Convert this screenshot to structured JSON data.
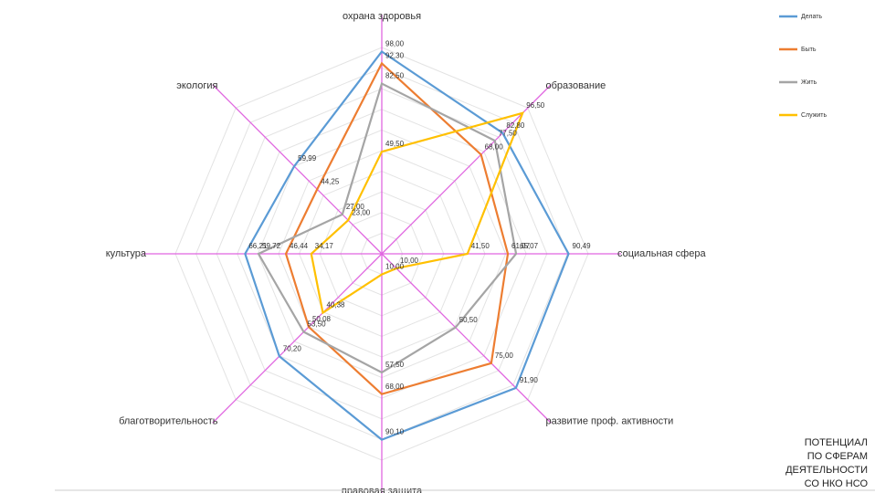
{
  "chart_data": {
    "type": "radar",
    "categories": [
      "охрана здоровья",
      "образование",
      "социальная сфера",
      "развитие проф. активности",
      "правовая защита",
      "благотворительность",
      "культура",
      "экология"
    ],
    "series": [
      {
        "name": "Делать",
        "color": "#5b9bd5",
        "values": [
          98.0,
          82.8,
          90.49,
          91.9,
          90.1,
          70.2,
          66.21,
          59.99
        ],
        "value_labels": [
          "98,00",
          "82,80",
          "90,49",
          "91,90",
          "90,10",
          "70,20",
          "66,21",
          "59,99"
        ]
      },
      {
        "name": "Быть",
        "color": "#ed7d31",
        "values": [
          92.3,
          68.0,
          61.07,
          75.0,
          68.0,
          50.08,
          46.44,
          44.25
        ],
        "value_labels": [
          "92,30",
          "68,00",
          "61,07",
          "75,00",
          "68,00",
          "50,08",
          "46,44",
          "44,25"
        ]
      },
      {
        "name": "Жить",
        "color": "#a5a5a5",
        "values": [
          82.5,
          77.5,
          65.07,
          50.5,
          57.5,
          53.5,
          59.72,
          27.0
        ],
        "value_labels": [
          "82,50",
          "77,50",
          "65,07",
          "50,50",
          "57,50",
          "53,50",
          "59,72",
          "27,00"
        ]
      },
      {
        "name": "Служить",
        "color": "#ffc000",
        "values": [
          49.5,
          96.5,
          41.5,
          10.0,
          10.0,
          40.38,
          34.17,
          23.0
        ],
        "value_labels": [
          "49,50",
          "96,50",
          "41,50",
          "10,00",
          "10,00",
          "40,38",
          "34,17",
          "23,00"
        ]
      }
    ],
    "rlim": [
      0,
      100
    ],
    "rticks": [
      10,
      20,
      30,
      40,
      50,
      60,
      70,
      80,
      90,
      100
    ],
    "grid": true,
    "axis_color": "#e066e0",
    "legend": "upper right"
  },
  "note": [
    "ПОТЕНЦИАЛ",
    "ПО СФЕРАМ",
    "ДЕЯТЕЛЬНОСТИ",
    "СО НКО НСО"
  ]
}
